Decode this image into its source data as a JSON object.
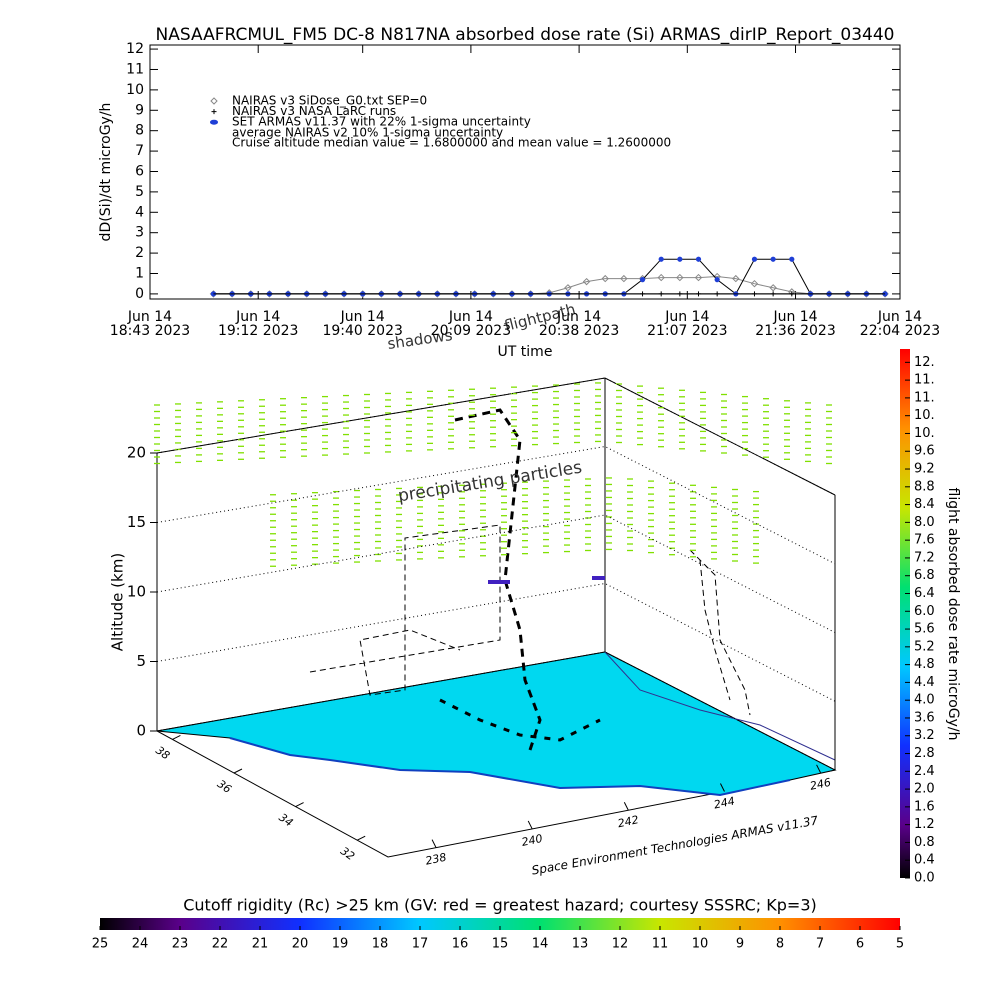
{
  "chart_data": [
    {
      "type": "line",
      "title": "NASAAFRCMUL_FM5 DC-8   N817NA absorbed dose rate (Si) ARMAS_dirIP_Report_03440",
      "ylabel": "dD(Si)/dt microGy/h",
      "xlabel": "UT time",
      "xlim": [
        "2023-06-14T18:43",
        "2023-06-14T22:04"
      ],
      "xticks": [
        {
          "value": "2023-06-14T18:43",
          "label": [
            "Jun 14",
            "18:43 2023"
          ]
        },
        {
          "value": "2023-06-14T19:12",
          "label": [
            "Jun 14",
            "19:12 2023"
          ]
        },
        {
          "value": "2023-06-14T19:40",
          "label": [
            "Jun 14",
            "19:40 2023"
          ]
        },
        {
          "value": "2023-06-14T20:09",
          "label": [
            "Jun 14",
            "20:09 2023"
          ]
        },
        {
          "value": "2023-06-14T20:38",
          "label": [
            "Jun 14",
            "20:38 2023"
          ]
        },
        {
          "value": "2023-06-14T21:07",
          "label": [
            "Jun 14",
            "21:07 2023"
          ]
        },
        {
          "value": "2023-06-14T21:36",
          "label": [
            "Jun 14",
            "21:36 2023"
          ]
        },
        {
          "value": "2023-06-14T22:04",
          "label": [
            "Jun 14",
            "22:04 2023"
          ]
        }
      ],
      "ylim": [
        -0.25,
        12.2
      ],
      "yticks": [
        0,
        1,
        2,
        3,
        4,
        5,
        6,
        7,
        8,
        9,
        10,
        11,
        12
      ],
      "x": [
        "2023-06-14T19:00",
        "2023-06-14T19:05",
        "2023-06-14T19:10",
        "2023-06-14T19:15",
        "2023-06-14T19:20",
        "2023-06-14T19:25",
        "2023-06-14T19:30",
        "2023-06-14T19:35",
        "2023-06-14T19:40",
        "2023-06-14T19:45",
        "2023-06-14T19:50",
        "2023-06-14T19:55",
        "2023-06-14T20:00",
        "2023-06-14T20:05",
        "2023-06-14T20:10",
        "2023-06-14T20:15",
        "2023-06-14T20:20",
        "2023-06-14T20:25",
        "2023-06-14T20:30",
        "2023-06-14T20:35",
        "2023-06-14T20:40",
        "2023-06-14T20:45",
        "2023-06-14T20:50",
        "2023-06-14T20:55",
        "2023-06-14T21:00",
        "2023-06-14T21:05",
        "2023-06-14T21:10",
        "2023-06-14T21:15",
        "2023-06-14T21:20",
        "2023-06-14T21:25",
        "2023-06-14T21:30",
        "2023-06-14T21:35",
        "2023-06-14T21:40",
        "2023-06-14T21:45",
        "2023-06-14T21:50",
        "2023-06-14T21:55",
        "2023-06-14T22:00"
      ],
      "series": [
        {
          "name": "NAIRAS v3 SiDose_G0.txt SEP=0",
          "color": "#888888",
          "marker": "diamond",
          "values": [
            0,
            0,
            0,
            0,
            0,
            0,
            0,
            0,
            0,
            0,
            0,
            0,
            0,
            0,
            0,
            0,
            0,
            0,
            0.05,
            0.3,
            0.6,
            0.75,
            0.75,
            0.75,
            0.8,
            0.8,
            0.8,
            0.85,
            0.75,
            0.5,
            0.3,
            0.1,
            0,
            0,
            0,
            0,
            0
          ]
        },
        {
          "name": "NAIRAS v3 NASA LaRC runs",
          "color": "#000000",
          "marker": "plus",
          "values": [
            0,
            0,
            0,
            0,
            0,
            0,
            0,
            0,
            0,
            0,
            0,
            0,
            0,
            0,
            0,
            0,
            0,
            0,
            0,
            0,
            0,
            0,
            0,
            0,
            0,
            0,
            0,
            0,
            0,
            0,
            0,
            0,
            0,
            0,
            0,
            0,
            0
          ]
        },
        {
          "name": "SET ARMAS v11.37 with 22% 1-sigma uncertainty",
          "color": "#1f3fd6",
          "marker": "dot",
          "values": [
            0,
            0,
            0,
            0,
            0,
            0,
            0,
            0,
            0,
            0,
            0,
            0,
            0,
            0,
            0,
            0,
            0,
            0,
            0,
            0,
            0,
            0,
            0,
            0.7,
            1.7,
            1.7,
            1.7,
            0.7,
            0,
            1.7,
            1.7,
            1.7,
            0,
            0,
            0,
            0,
            0
          ]
        },
        {
          "name": "average NAIRAS v2 10% 1-sigma uncertainty",
          "color": "#000000",
          "marker": "none",
          "values": [
            0,
            0,
            0,
            0,
            0,
            0,
            0,
            0,
            0,
            0,
            0,
            0,
            0,
            0,
            0,
            0,
            0,
            0,
            0,
            0,
            0,
            0,
            0,
            0,
            0,
            0,
            0,
            0,
            0,
            0,
            0,
            0,
            0,
            0,
            0,
            0,
            0
          ]
        }
      ],
      "annotation": "Cruise altitude median value = 1.6800000 and mean value = 1.2600000"
    },
    {
      "type": "surface3d",
      "zlabel": "Altitude (km)",
      "zlim": [
        0,
        20
      ],
      "zticks": [
        0,
        5,
        10,
        15,
        20
      ],
      "xlim": [
        237,
        246.3
      ],
      "xticks": [
        238,
        240,
        242,
        244,
        246
      ],
      "ylim": [
        38.5,
        31
      ],
      "yticks": [
        38,
        36,
        34,
        32
      ],
      "annotations": [
        "precipitating particles",
        "shadows",
        "flightpath"
      ],
      "credit": "Space Environment Technologies ARMAS v11.37",
      "colorbar": {
        "label": "flight absorbed dose rate microGy/h",
        "lim": [
          0,
          11.9
        ],
        "ticks": [
          {
            "value": 0,
            "label": "0.0"
          },
          {
            "value": 0.4,
            "label": "0.4"
          },
          {
            "value": 0.8,
            "label": "0.8"
          },
          {
            "value": 1.2,
            "label": "1.2"
          },
          {
            "value": 1.6,
            "label": "1.6"
          },
          {
            "value": 2,
            "label": "2.0"
          },
          {
            "value": 2.4,
            "label": "2.4"
          },
          {
            "value": 2.8,
            "label": "2.8"
          },
          {
            "value": 3.2,
            "label": "3.2"
          },
          {
            "value": 3.6,
            "label": "3.6"
          },
          {
            "value": 4,
            "label": "4.0"
          },
          {
            "value": 4.4,
            "label": "4.4"
          },
          {
            "value": 4.8,
            "label": "4.8"
          },
          {
            "value": 5.2,
            "label": "5.2"
          },
          {
            "value": 5.6,
            "label": "5.6"
          },
          {
            "value": 6,
            "label": "6.0"
          },
          {
            "value": 6.4,
            "label": "6.4"
          },
          {
            "value": 6.8,
            "label": "6.8"
          },
          {
            "value": 7.2,
            "label": "7.2"
          },
          {
            "value": 7.6,
            "label": "7.6"
          },
          {
            "value": 8,
            "label": "8.0"
          },
          {
            "value": 8.4,
            "label": "8.4"
          },
          {
            "value": 8.8,
            "label": "8.8"
          },
          {
            "value": 9.2,
            "label": "9.2"
          },
          {
            "value": 9.6,
            "label": "9.6"
          },
          {
            "value": 10,
            "label": "10."
          },
          {
            "value": 10.4,
            "label": "10."
          },
          {
            "value": 10.8,
            "label": "11."
          },
          {
            "value": 11.2,
            "label": "11."
          },
          {
            "value": 11.6,
            "label": "12."
          }
        ]
      },
      "colorbar2": {
        "label": "Cutoff rigidity (Rc) >25 km (GV: red = greatest hazard; courtesy SSSRC; Kp=3)",
        "lim": [
          25,
          5
        ],
        "ticks": [
          25,
          24,
          23,
          22,
          21,
          20,
          19,
          18,
          17,
          16,
          15,
          14,
          13,
          12,
          11,
          10,
          9,
          8,
          7,
          6,
          5
        ]
      }
    }
  ]
}
